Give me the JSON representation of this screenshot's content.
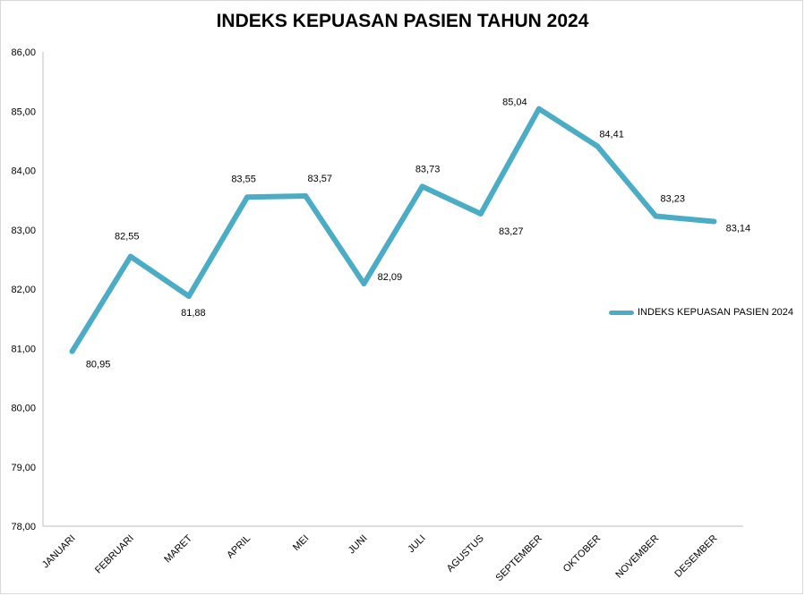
{
  "chart_data": {
    "type": "line",
    "title": "INDEKS KEPUASAN PASIEN TAHUN 2024",
    "xlabel": "",
    "ylabel": "",
    "categories": [
      "JANUARI",
      "FEBRUARI",
      "MARET",
      "APRIL",
      "MEI",
      "JUNI",
      "JULI",
      "AGUSTUS",
      "SEPTEMBER",
      "OKTOBER",
      "NOVEMBER",
      "DESEMBER"
    ],
    "series": [
      {
        "name": "INDEKS KEPUASAN PASIEN 2024",
        "values": [
          80.95,
          82.55,
          81.88,
          83.55,
          83.57,
          82.09,
          83.73,
          83.27,
          85.04,
          84.41,
          83.23,
          83.14
        ],
        "labels": [
          "80,95",
          "82,55",
          "81,88",
          "83,55",
          "83,57",
          "82,09",
          "83,73",
          "83,27",
          "85,04",
          "84,41",
          "83,23",
          "83,14"
        ],
        "color": "#4bacc6"
      }
    ],
    "ylim": [
      78,
      86
    ],
    "yticks": [
      78,
      79,
      80,
      81,
      82,
      83,
      84,
      85,
      86
    ],
    "ytick_labels": [
      "78,00",
      "79,00",
      "80,00",
      "81,00",
      "82,00",
      "83,00",
      "84,00",
      "85,00",
      "86,00"
    ],
    "grid": false,
    "legend": "right"
  }
}
